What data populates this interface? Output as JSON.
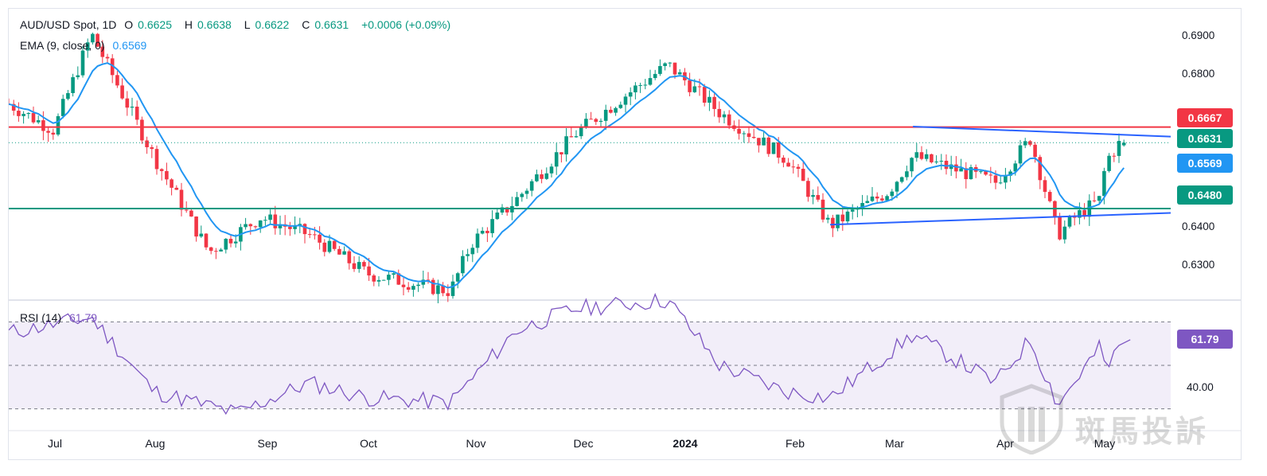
{
  "header": {
    "symbol": "AUD/USD Spot, 1D",
    "open_label": "O",
    "open": "0.6625",
    "high_label": "H",
    "high": "0.6638",
    "low_label": "L",
    "low": "0.6622",
    "close_label": "C",
    "close": "0.6631",
    "change": "+0.0006 (+0.09%)"
  },
  "ema_legend": {
    "label": "EMA (9, close, 0)",
    "value": "0.6569"
  },
  "rsi_legend": {
    "label": "RSI (14)",
    "value": "61.79"
  },
  "price_axis": {
    "ticks": [
      "0.6900",
      "0.6800",
      "0.6400",
      "0.6300"
    ],
    "badges": [
      {
        "value": "0.6667",
        "color": "#f23645"
      },
      {
        "value": "0.6631",
        "color": "#089981"
      },
      {
        "value": "0.6569",
        "color": "#2196f3"
      },
      {
        "value": "0.6480",
        "color": "#089981"
      }
    ]
  },
  "rsi_axis": {
    "tick": "40.00",
    "badge": {
      "value": "61.79",
      "color": "#7e57c2"
    }
  },
  "time_axis": [
    "Jul",
    "Aug",
    "Sep",
    "Oct",
    "Nov",
    "Dec",
    "2024",
    "Feb",
    "Mar",
    "Apr",
    "May"
  ],
  "watermark": {
    "text": "斑馬投訴"
  },
  "colors": {
    "up": "#089981",
    "down": "#f23645",
    "ema": "#2196f3",
    "rsi": "#7e57c2",
    "resistance": "#f23645",
    "support": "#089981",
    "trendline": "#2962ff"
  },
  "chart_data": [
    {
      "type": "candlestick",
      "title": "AUD/USD Spot, 1D",
      "ylim": [
        0.627,
        0.692
      ],
      "x": [
        "2023-06-20",
        "2023-07-03",
        "2023-07-14",
        "2023-08-01",
        "2023-08-17",
        "2023-09-01",
        "2023-09-15",
        "2023-10-02",
        "2023-10-20",
        "2023-10-26",
        "2023-11-01",
        "2023-11-14",
        "2023-12-01",
        "2023-12-14",
        "2023-12-28",
        "2024-01-12",
        "2024-02-01",
        "2024-02-13",
        "2024-03-01",
        "2024-03-08",
        "2024-04-01",
        "2024-04-11",
        "2024-04-19",
        "2024-04-24",
        "2024-05-01",
        "2024-05-03",
        "2024-05-07"
      ],
      "close": [
        0.672,
        0.666,
        0.688,
        0.66,
        0.638,
        0.646,
        0.642,
        0.633,
        0.63,
        0.629,
        0.64,
        0.65,
        0.665,
        0.673,
        0.681,
        0.67,
        0.659,
        0.644,
        0.652,
        0.66,
        0.654,
        0.664,
        0.642,
        0.646,
        0.65,
        0.659,
        0.6631
      ],
      "last_bar": {
        "open": 0.6625,
        "high": 0.6638,
        "low": 0.6622,
        "close": 0.6631
      },
      "ema": {
        "name": "EMA (9, close, 0)",
        "last": 0.6569
      },
      "horizontal_levels": [
        {
          "price": 0.6667,
          "color": "red"
        },
        {
          "price": 0.648,
          "color": "green"
        }
      ],
      "trendlines": [
        {
          "from": [
            "2024-03-08",
            0.6668
          ],
          "to": [
            "2024-05-09",
            0.6645
          ]
        },
        {
          "from": [
            "2024-02-13",
            0.6443
          ],
          "to": [
            "2024-05-09",
            0.647
          ]
        }
      ]
    },
    {
      "type": "line",
      "title": "RSI (14)",
      "ylim": [
        20,
        80
      ],
      "bands": [
        30,
        50,
        70
      ],
      "x": [
        "2023-06-20",
        "2023-07-14",
        "2023-08-01",
        "2023-08-25",
        "2023-09-15",
        "2023-10-02",
        "2023-10-26",
        "2023-11-14",
        "2023-12-01",
        "2023-12-28",
        "2024-01-12",
        "2024-01-31",
        "2024-02-13",
        "2024-03-08",
        "2024-04-01",
        "2024-04-11",
        "2024-04-19",
        "2024-05-01",
        "2024-05-03",
        "2024-05-08"
      ],
      "values": [
        65,
        72,
        38,
        28,
        42,
        35,
        33,
        66,
        76,
        80,
        50,
        38,
        35,
        64,
        42,
        62,
        32,
        58,
        48,
        61.79
      ],
      "last": 61.79
    }
  ]
}
